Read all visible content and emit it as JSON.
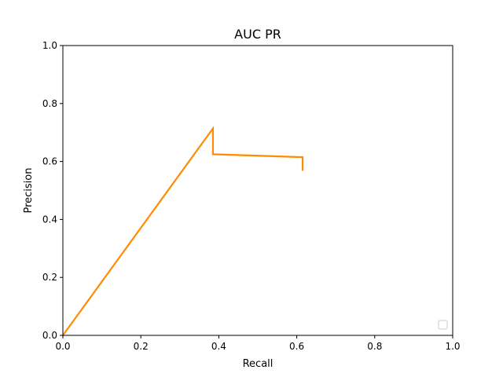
{
  "chart_data": {
    "type": "line",
    "title": "AUC PR",
    "xlabel": "Recall",
    "ylabel": "Precision",
    "xlim": [
      0.0,
      1.0
    ],
    "ylim": [
      0.0,
      1.0
    ],
    "xticks": [
      "0.0",
      "0.2",
      "0.4",
      "0.6",
      "0.8",
      "1.0"
    ],
    "yticks": [
      "0.0",
      "0.2",
      "0.4",
      "0.6",
      "0.8",
      "1.0"
    ],
    "grid": false,
    "legend": {
      "placement": "bottom-right",
      "entries": []
    },
    "series": [
      {
        "color": "#ff8c00",
        "x": [
          0.0,
          0.385,
          0.385,
          0.615,
          0.615
        ],
        "y": [
          0.0,
          0.714,
          0.625,
          0.615,
          0.571
        ]
      }
    ]
  }
}
